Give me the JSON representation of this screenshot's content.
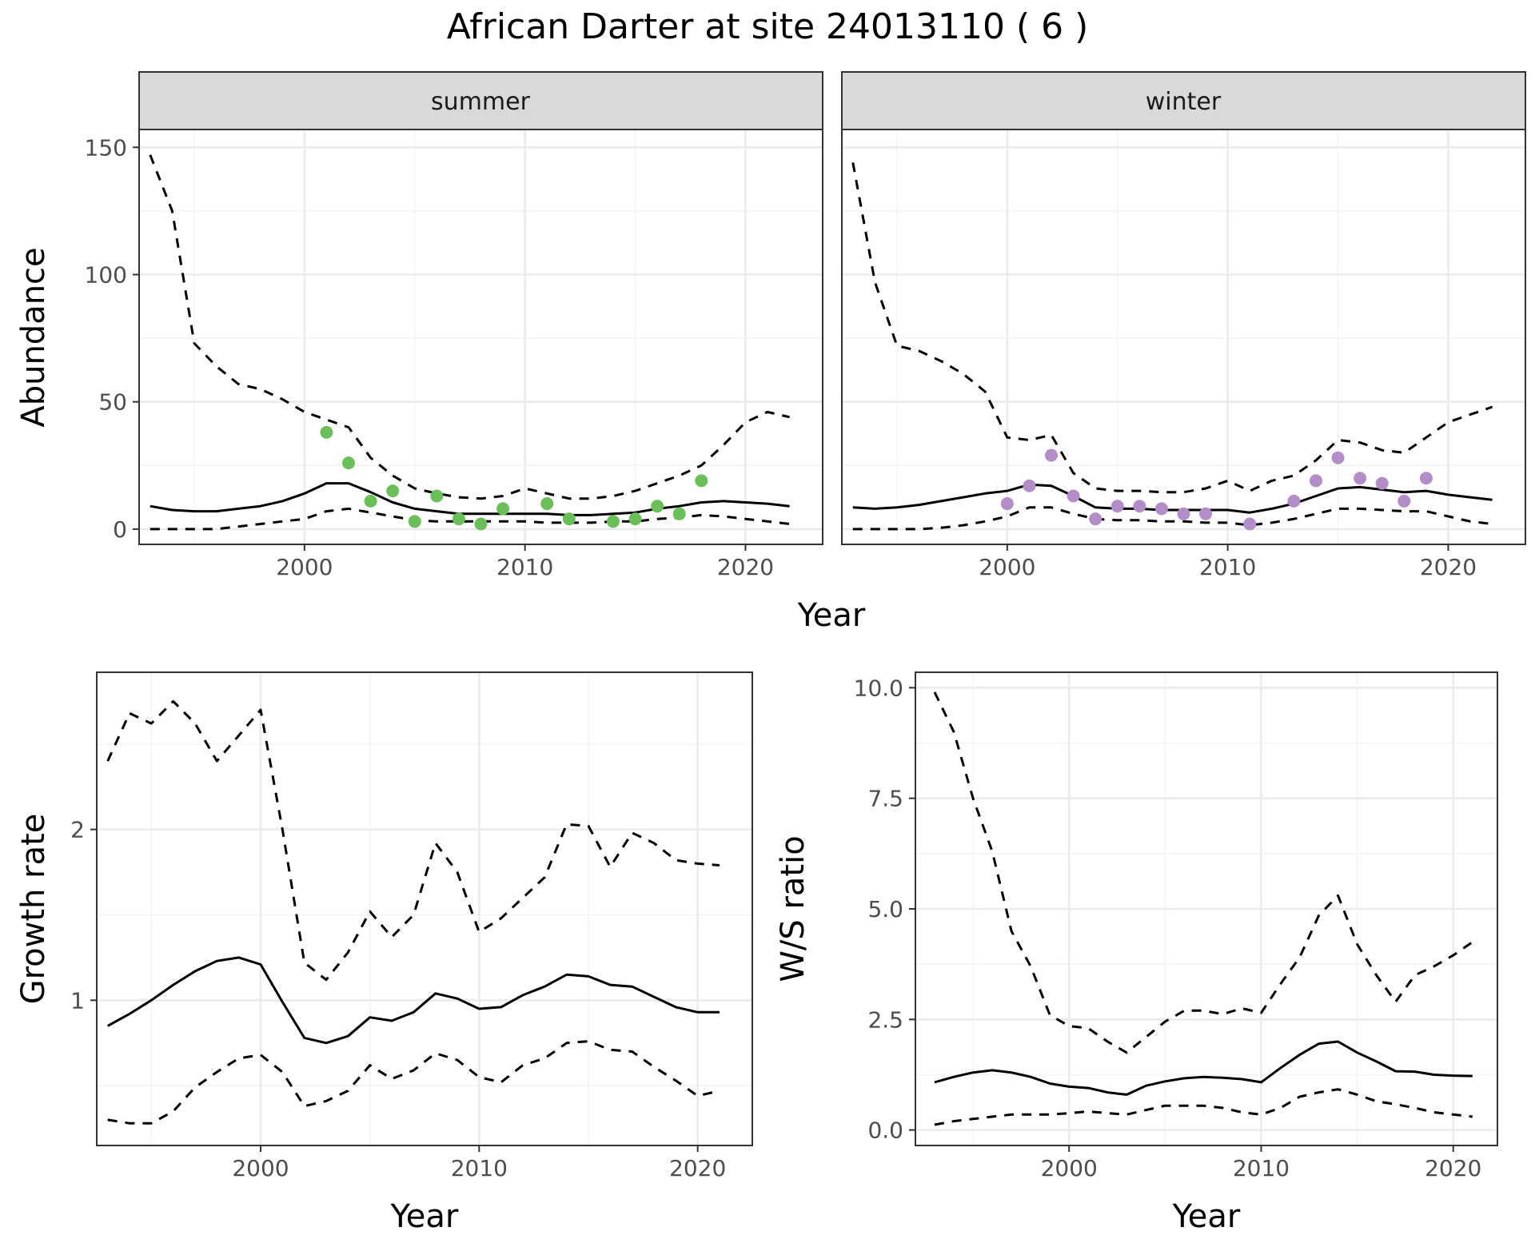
{
  "title": "African Darter at site 24013110 ( 6 )",
  "chart_data": [
    {
      "id": "abundance-summer",
      "type": "line",
      "facet": "summer",
      "xlabel": "Year",
      "ylabel": "Abundance",
      "xlim": [
        1992.5,
        2023.5
      ],
      "ylim": [
        -6,
        157
      ],
      "xticks": [
        2000,
        2010,
        2020
      ],
      "yticks": [
        0,
        50,
        100,
        150
      ],
      "grid": true,
      "point_color": "#6bbf59",
      "series": [
        {
          "role": "fit",
          "style": "solid",
          "x": [
            1993,
            1994,
            1995,
            1996,
            1997,
            1998,
            1999,
            2000,
            2001,
            2002,
            2003,
            2004,
            2005,
            2006,
            2007,
            2008,
            2009,
            2010,
            2011,
            2012,
            2013,
            2014,
            2015,
            2016,
            2017,
            2018,
            2019,
            2020,
            2021,
            2022
          ],
          "y": [
            9,
            7.5,
            7,
            7,
            8,
            9,
            11,
            14,
            18,
            18,
            14.5,
            10.5,
            8,
            7,
            6,
            6,
            6,
            6,
            6,
            5.5,
            5.5,
            6,
            6.5,
            8,
            9,
            10.5,
            11,
            10.5,
            10,
            9
          ]
        },
        {
          "role": "upper",
          "style": "dashed",
          "x": [
            1993,
            1994,
            1995,
            1996,
            1997,
            1998,
            1999,
            2000,
            2001,
            2002,
            2003,
            2004,
            2005,
            2006,
            2007,
            2008,
            2009,
            2010,
            2011,
            2012,
            2013,
            2014,
            2015,
            2016,
            2017,
            2018,
            2019,
            2020,
            2021,
            2022
          ],
          "y": [
            147,
            125,
            73,
            64,
            57,
            55,
            51,
            46,
            43,
            40,
            28,
            21,
            16,
            14,
            12.5,
            12,
            13,
            16,
            14,
            12,
            12,
            13,
            15,
            18,
            21,
            25,
            33,
            42,
            46,
            44
          ]
        },
        {
          "role": "lower",
          "style": "dashed",
          "x": [
            1993,
            1994,
            1995,
            1996,
            1997,
            1998,
            1999,
            2000,
            2001,
            2002,
            2003,
            2004,
            2005,
            2006,
            2007,
            2008,
            2009,
            2010,
            2011,
            2012,
            2013,
            2014,
            2015,
            2016,
            2017,
            2018,
            2019,
            2020,
            2021,
            2022
          ],
          "y": [
            0,
            0,
            0,
            0,
            1,
            2,
            3,
            4,
            7,
            8,
            6.5,
            5,
            3.5,
            3,
            3,
            3,
            3,
            3,
            2.5,
            2.5,
            2.5,
            3,
            3,
            4,
            4.5,
            5.5,
            5,
            4,
            3,
            2
          ]
        },
        {
          "role": "observed",
          "style": "points",
          "x": [
            2001,
            2002,
            2003,
            2004,
            2005,
            2006,
            2007,
            2008,
            2009,
            2011,
            2012,
            2014,
            2015,
            2016,
            2017,
            2018
          ],
          "y": [
            38,
            26,
            11,
            15,
            3,
            13,
            4,
            2,
            8,
            10,
            4,
            3,
            4,
            9,
            6,
            19
          ]
        }
      ]
    },
    {
      "id": "abundance-winter",
      "type": "line",
      "facet": "winter",
      "xlabel": "Year",
      "ylabel": "Abundance",
      "xlim": [
        1992.5,
        2023.5
      ],
      "ylim": [
        -6,
        157
      ],
      "xticks": [
        2000,
        2010,
        2020
      ],
      "yticks": [
        0,
        50,
        100,
        150
      ],
      "grid": true,
      "point_color": "#b28dc8",
      "series": [
        {
          "role": "fit",
          "style": "solid",
          "x": [
            1993,
            1994,
            1995,
            1996,
            1997,
            1998,
            1999,
            2000,
            2001,
            2002,
            2003,
            2004,
            2005,
            2006,
            2007,
            2008,
            2009,
            2010,
            2011,
            2012,
            2013,
            2014,
            2015,
            2016,
            2017,
            2018,
            2019,
            2020,
            2021,
            2022
          ],
          "y": [
            8.5,
            8,
            8.5,
            9.5,
            11,
            12.5,
            14,
            15,
            17.5,
            17,
            13,
            8.5,
            8,
            8,
            7.5,
            7.5,
            7.5,
            7.5,
            6.5,
            8,
            10,
            13,
            16,
            16.5,
            15.5,
            14.5,
            15,
            13.5,
            12.5,
            11.5
          ]
        },
        {
          "role": "upper",
          "style": "dashed",
          "x": [
            1993,
            1994,
            1995,
            1996,
            1997,
            1998,
            1999,
            2000,
            2001,
            2002,
            2003,
            2004,
            2005,
            2006,
            2007,
            2008,
            2009,
            2010,
            2011,
            2012,
            2013,
            2014,
            2015,
            2016,
            2017,
            2018,
            2019,
            2020,
            2021,
            2022
          ],
          "y": [
            144,
            97,
            72,
            70,
            66,
            61,
            54,
            36,
            35,
            37,
            22,
            16,
            15,
            15,
            14.5,
            14.5,
            16,
            19,
            15,
            19,
            21,
            27,
            35,
            34,
            31,
            30,
            36,
            42,
            45,
            48
          ]
        },
        {
          "role": "lower",
          "style": "dashed",
          "x": [
            1993,
            1994,
            1995,
            1996,
            1997,
            1998,
            1999,
            2000,
            2001,
            2002,
            2003,
            2004,
            2005,
            2006,
            2007,
            2008,
            2009,
            2010,
            2011,
            2012,
            2013,
            2014,
            2015,
            2016,
            2017,
            2018,
            2019,
            2020,
            2021,
            2022
          ],
          "y": [
            0,
            0,
            0,
            0,
            0.5,
            1.5,
            3,
            5,
            8.5,
            8.5,
            6,
            4,
            3.5,
            3.5,
            3,
            3,
            2.5,
            2.5,
            1.5,
            2.5,
            4,
            6,
            8,
            8,
            7.5,
            7,
            7,
            5,
            3,
            2
          ]
        },
        {
          "role": "observed",
          "style": "points",
          "x": [
            2000,
            2001,
            2002,
            2003,
            2004,
            2005,
            2006,
            2007,
            2008,
            2009,
            2011,
            2013,
            2014,
            2015,
            2016,
            2017,
            2018,
            2019
          ],
          "y": [
            10,
            17,
            29,
            13,
            4,
            9,
            9,
            8,
            6,
            6,
            2,
            11,
            19,
            28,
            20,
            18,
            11,
            20
          ]
        }
      ]
    },
    {
      "id": "growth-rate",
      "type": "line",
      "xlabel": "Year",
      "ylabel": "Growth rate",
      "xlim": [
        1992.5,
        2022.5
      ],
      "ylim": [
        0.15,
        2.92
      ],
      "xticks": [
        2000,
        2010,
        2020
      ],
      "yticks": [
        1,
        2
      ],
      "grid": true,
      "series": [
        {
          "role": "fit",
          "style": "solid",
          "x": [
            1993,
            1994,
            1995,
            1996,
            1997,
            1998,
            1999,
            2000,
            2001,
            2002,
            2003,
            2004,
            2005,
            2006,
            2007,
            2008,
            2009,
            2010,
            2011,
            2012,
            2013,
            2014,
            2015,
            2016,
            2017,
            2018,
            2019,
            2020,
            2021
          ],
          "y": [
            0.85,
            0.92,
            1.0,
            1.09,
            1.17,
            1.23,
            1.25,
            1.21,
            0.99,
            0.78,
            0.75,
            0.79,
            0.9,
            0.88,
            0.93,
            1.04,
            1.01,
            0.95,
            0.96,
            1.03,
            1.08,
            1.15,
            1.14,
            1.09,
            1.08,
            1.02,
            0.96,
            0.93,
            0.93
          ]
        },
        {
          "role": "upper",
          "style": "dashed",
          "x": [
            1993,
            1994,
            1995,
            1996,
            1997,
            1998,
            1999,
            2000,
            2001,
            2002,
            2003,
            2004,
            2005,
            2006,
            2007,
            2008,
            2009,
            2010,
            2011,
            2012,
            2013,
            2014,
            2015,
            2016,
            2017,
            2018,
            2019,
            2020,
            2021
          ],
          "y": [
            2.4,
            2.68,
            2.62,
            2.75,
            2.62,
            2.4,
            2.55,
            2.7,
            2.0,
            1.22,
            1.12,
            1.28,
            1.52,
            1.37,
            1.5,
            1.92,
            1.75,
            1.4,
            1.48,
            1.6,
            1.72,
            2.03,
            2.02,
            1.78,
            1.98,
            1.92,
            1.82,
            1.8,
            1.79
          ]
        },
        {
          "role": "lower",
          "style": "dashed",
          "x": [
            1993,
            1994,
            1995,
            1996,
            1997,
            1998,
            1999,
            2000,
            2001,
            2002,
            2003,
            2004,
            2005,
            2006,
            2007,
            2008,
            2009,
            2010,
            2011,
            2012,
            2013,
            2014,
            2015,
            2016,
            2017,
            2018,
            2019,
            2020,
            2021
          ],
          "y": [
            0.3,
            0.28,
            0.28,
            0.35,
            0.49,
            0.58,
            0.66,
            0.68,
            0.58,
            0.38,
            0.41,
            0.47,
            0.62,
            0.54,
            0.59,
            0.69,
            0.65,
            0.55,
            0.52,
            0.62,
            0.66,
            0.75,
            0.76,
            0.71,
            0.7,
            0.61,
            0.53,
            0.44,
            0.47
          ]
        }
      ]
    },
    {
      "id": "ws-ratio",
      "type": "line",
      "xlabel": "Year",
      "ylabel": "W/S ratio",
      "xlim": [
        1992.0,
        2022.3
      ],
      "ylim": [
        -0.35,
        10.35
      ],
      "xticks": [
        2000,
        2010,
        2020
      ],
      "yticks": [
        0.0,
        2.5,
        5.0,
        7.5,
        10.0
      ],
      "ytick_labels": [
        "0.0",
        "2.5",
        "5.0",
        "7.5",
        "10.0"
      ],
      "grid": true,
      "series": [
        {
          "role": "fit",
          "style": "solid",
          "x": [
            1993,
            1994,
            1995,
            1996,
            1997,
            1998,
            1999,
            2000,
            2001,
            2002,
            2003,
            2004,
            2005,
            2006,
            2007,
            2008,
            2009,
            2010,
            2011,
            2012,
            2013,
            2014,
            2015,
            2016,
            2017,
            2018,
            2019,
            2020,
            2021
          ],
          "y": [
            1.08,
            1.2,
            1.3,
            1.35,
            1.3,
            1.2,
            1.05,
            0.98,
            0.95,
            0.85,
            0.8,
            1.0,
            1.1,
            1.17,
            1.2,
            1.18,
            1.15,
            1.08,
            1.4,
            1.7,
            1.95,
            2.0,
            1.75,
            1.55,
            1.33,
            1.32,
            1.25,
            1.23,
            1.22
          ]
        },
        {
          "role": "upper",
          "style": "dashed",
          "x": [
            1993,
            1994,
            1995,
            1996,
            1997,
            1998,
            1999,
            2000,
            2001,
            2002,
            2003,
            2004,
            2005,
            2006,
            2007,
            2008,
            2009,
            2010,
            2011,
            2012,
            2013,
            2014,
            2015,
            2016,
            2017,
            2018,
            2019,
            2020,
            2021
          ],
          "y": [
            9.9,
            9.0,
            7.5,
            6.3,
            4.5,
            3.7,
            2.6,
            2.35,
            2.3,
            2.0,
            1.75,
            2.1,
            2.45,
            2.7,
            2.7,
            2.62,
            2.75,
            2.65,
            3.3,
            3.9,
            4.85,
            5.3,
            4.2,
            3.5,
            2.9,
            3.5,
            3.7,
            3.95,
            4.25
          ]
        },
        {
          "role": "lower",
          "style": "dashed",
          "x": [
            1993,
            1994,
            1995,
            1996,
            1997,
            1998,
            1999,
            2000,
            2001,
            2002,
            2003,
            2004,
            2005,
            2006,
            2007,
            2008,
            2009,
            2010,
            2011,
            2012,
            2013,
            2014,
            2015,
            2016,
            2017,
            2018,
            2019,
            2020,
            2021
          ],
          "y": [
            0.12,
            0.2,
            0.25,
            0.3,
            0.35,
            0.35,
            0.35,
            0.38,
            0.42,
            0.38,
            0.35,
            0.45,
            0.55,
            0.55,
            0.55,
            0.5,
            0.4,
            0.35,
            0.5,
            0.75,
            0.85,
            0.92,
            0.8,
            0.65,
            0.58,
            0.5,
            0.4,
            0.35,
            0.3
          ]
        }
      ]
    }
  ]
}
